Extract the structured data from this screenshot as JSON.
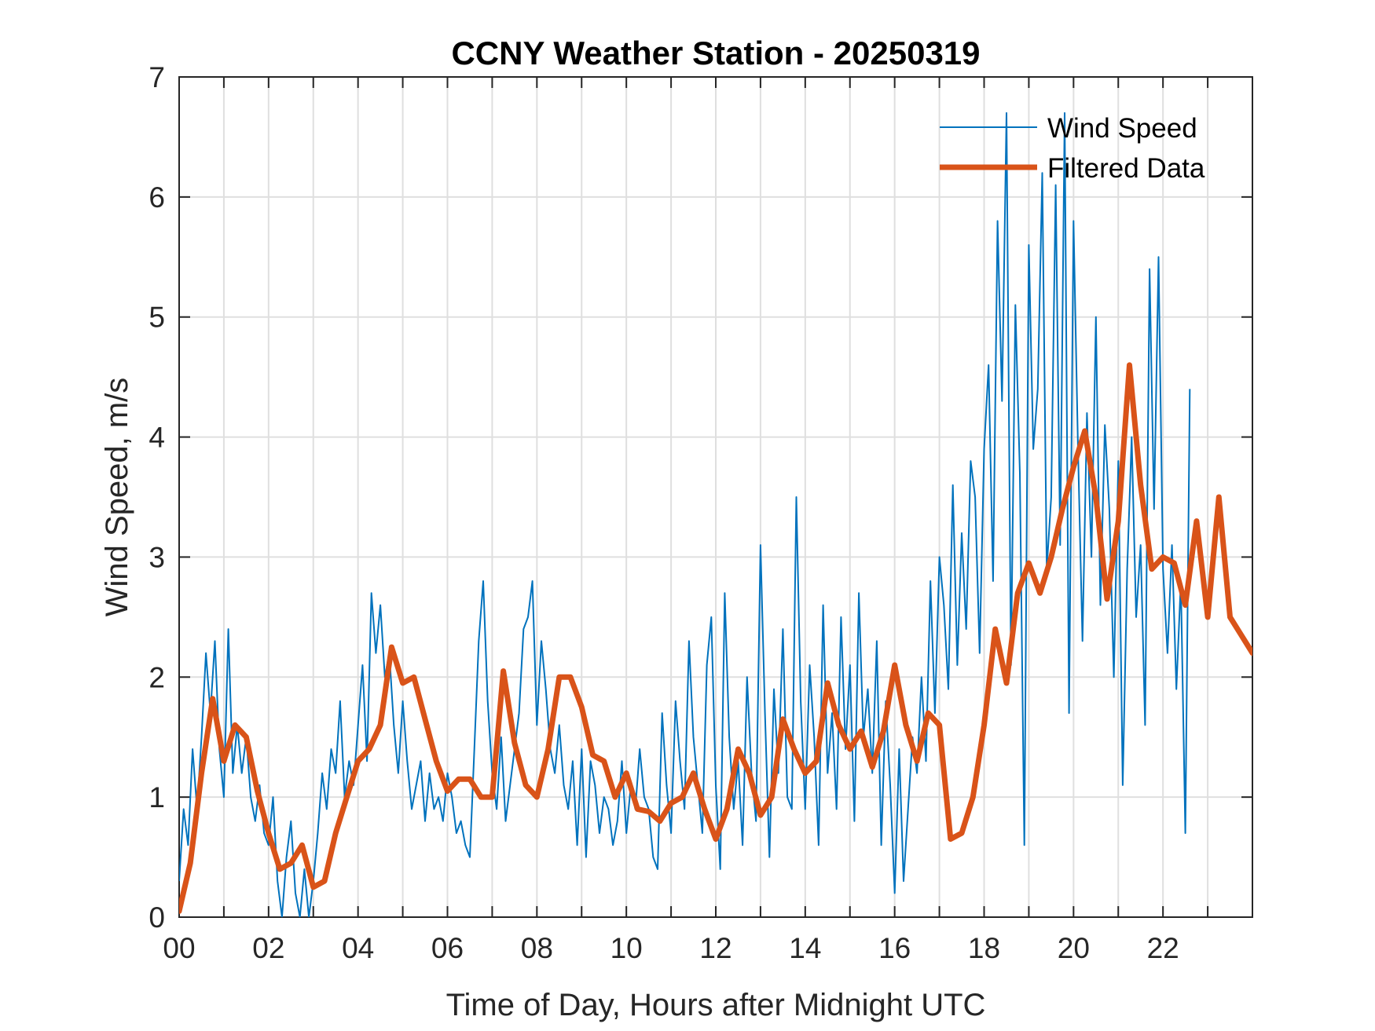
{
  "chart_data": {
    "type": "line",
    "title": "CCNY Weather Station - 20250319",
    "xlabel": "Time of Day, Hours after Midnight UTC",
    "ylabel": "Wind Speed, m/s",
    "xlim": [
      0,
      24
    ],
    "ylim": [
      0,
      7
    ],
    "xticks": [
      0,
      2,
      4,
      6,
      8,
      10,
      12,
      14,
      16,
      18,
      20,
      22
    ],
    "xtick_labels": [
      "00",
      "02",
      "04",
      "06",
      "08",
      "10",
      "12",
      "14",
      "16",
      "18",
      "20",
      "22"
    ],
    "xminor_ticks": [
      1,
      3,
      5,
      7,
      9,
      11,
      13,
      15,
      17,
      19,
      21,
      23
    ],
    "yticks": [
      0,
      1,
      2,
      3,
      4,
      5,
      6,
      7
    ],
    "ytick_labels": [
      "0",
      "1",
      "2",
      "3",
      "4",
      "5",
      "6",
      "7"
    ],
    "grid": true,
    "legend_position": "top-right",
    "legend": [
      "Wind Speed",
      "Filtered Data"
    ],
    "series": [
      {
        "name": "Wind Speed",
        "color": "#0072BD",
        "style": "thin",
        "x_step_hours": 0.1,
        "values": [
          0.3,
          0.9,
          0.6,
          1.4,
          0.9,
          1.5,
          2.2,
          1.7,
          2.3,
          1.4,
          1.0,
          2.4,
          1.2,
          1.6,
          1.2,
          1.5,
          1.0,
          0.8,
          1.1,
          0.7,
          0.6,
          1.0,
          0.3,
          0.0,
          0.5,
          0.8,
          0.2,
          0.0,
          0.4,
          0.0,
          0.3,
          0.7,
          1.2,
          0.9,
          1.4,
          1.2,
          1.8,
          1.0,
          1.3,
          1.1,
          1.6,
          2.1,
          1.3,
          2.7,
          2.2,
          2.6,
          2.0,
          2.2,
          1.6,
          1.2,
          1.8,
          1.3,
          0.9,
          1.1,
          1.3,
          0.8,
          1.2,
          0.9,
          1.0,
          0.8,
          1.2,
          1.0,
          0.7,
          0.8,
          0.6,
          0.5,
          1.4,
          2.3,
          2.8,
          1.8,
          1.2,
          0.9,
          1.5,
          0.8,
          1.1,
          1.4,
          1.7,
          2.4,
          2.5,
          2.8,
          1.6,
          2.3,
          1.9,
          1.4,
          1.2,
          1.6,
          1.1,
          0.9,
          1.3,
          0.6,
          1.4,
          0.5,
          1.3,
          1.1,
          0.7,
          1.0,
          0.9,
          0.6,
          0.8,
          1.3,
          0.7,
          1.1,
          0.9,
          1.4,
          1.0,
          0.9,
          0.5,
          0.4,
          1.7,
          1.1,
          0.7,
          1.8,
          1.3,
          0.9,
          2.3,
          1.5,
          1.1,
          0.7,
          2.1,
          2.5,
          1.1,
          0.4,
          2.7,
          1.5,
          0.9,
          1.3,
          0.6,
          2.0,
          1.2,
          0.8,
          3.1,
          1.7,
          0.5,
          1.9,
          1.2,
          2.4,
          1.0,
          0.9,
          3.5,
          1.8,
          0.9,
          2.1,
          1.5,
          0.6,
          2.6,
          1.2,
          1.7,
          0.9,
          2.5,
          1.4,
          2.1,
          0.8,
          2.7,
          1.5,
          1.9,
          1.2,
          2.3,
          0.6,
          1.8,
          1.1,
          0.2,
          1.4,
          0.3,
          0.9,
          1.5,
          1.2,
          2.0,
          1.3,
          2.8,
          1.7,
          3.0,
          2.6,
          1.9,
          3.6,
          2.1,
          3.2,
          2.4,
          3.8,
          3.5,
          2.2,
          3.9,
          4.6,
          2.8,
          5.8,
          4.3,
          6.7,
          2.1,
          5.1,
          3.7,
          0.6,
          5.6,
          3.9,
          4.4,
          6.2,
          2.9,
          3.5,
          6.1,
          3.1,
          6.7,
          1.7,
          5.8,
          3.9,
          2.3,
          4.2,
          3.0,
          5.0,
          2.6,
          4.1,
          3.4,
          2.0,
          3.8,
          1.1,
          2.9,
          4.0,
          2.5,
          3.1,
          1.6,
          5.4,
          3.4,
          5.5,
          2.9,
          2.2,
          3.1,
          1.9,
          2.8,
          0.7,
          4.4
        ]
      },
      {
        "name": "Filtered Data",
        "color": "#D95319",
        "style": "thick",
        "x_step_hours": 0.25,
        "values": [
          0.05,
          0.45,
          1.2,
          1.82,
          1.3,
          1.6,
          1.5,
          1.05,
          0.7,
          0.4,
          0.45,
          0.6,
          0.25,
          0.3,
          0.7,
          1.0,
          1.3,
          1.4,
          1.6,
          2.25,
          1.95,
          2.0,
          1.65,
          1.3,
          1.05,
          1.15,
          1.15,
          1.0,
          1.0,
          2.05,
          1.45,
          1.1,
          1.0,
          1.4,
          2.0,
          2.0,
          1.75,
          1.35,
          1.3,
          1.0,
          1.2,
          0.9,
          0.88,
          0.8,
          0.95,
          1.0,
          1.2,
          0.9,
          0.65,
          0.9,
          1.4,
          1.2,
          0.85,
          1.0,
          1.65,
          1.4,
          1.2,
          1.3,
          1.95,
          1.6,
          1.4,
          1.55,
          1.25,
          1.55,
          2.1,
          1.6,
          1.3,
          1.7,
          1.6,
          0.65,
          0.7,
          1.0,
          1.6,
          2.4,
          1.95,
          2.7,
          2.95,
          2.7,
          3.0,
          3.4,
          3.75,
          4.05,
          3.5,
          2.65,
          3.3,
          4.6,
          3.6,
          2.9,
          3.0,
          2.95,
          2.6,
          3.3,
          2.5,
          3.5,
          2.5,
          2.35,
          2.2
        ]
      }
    ]
  }
}
